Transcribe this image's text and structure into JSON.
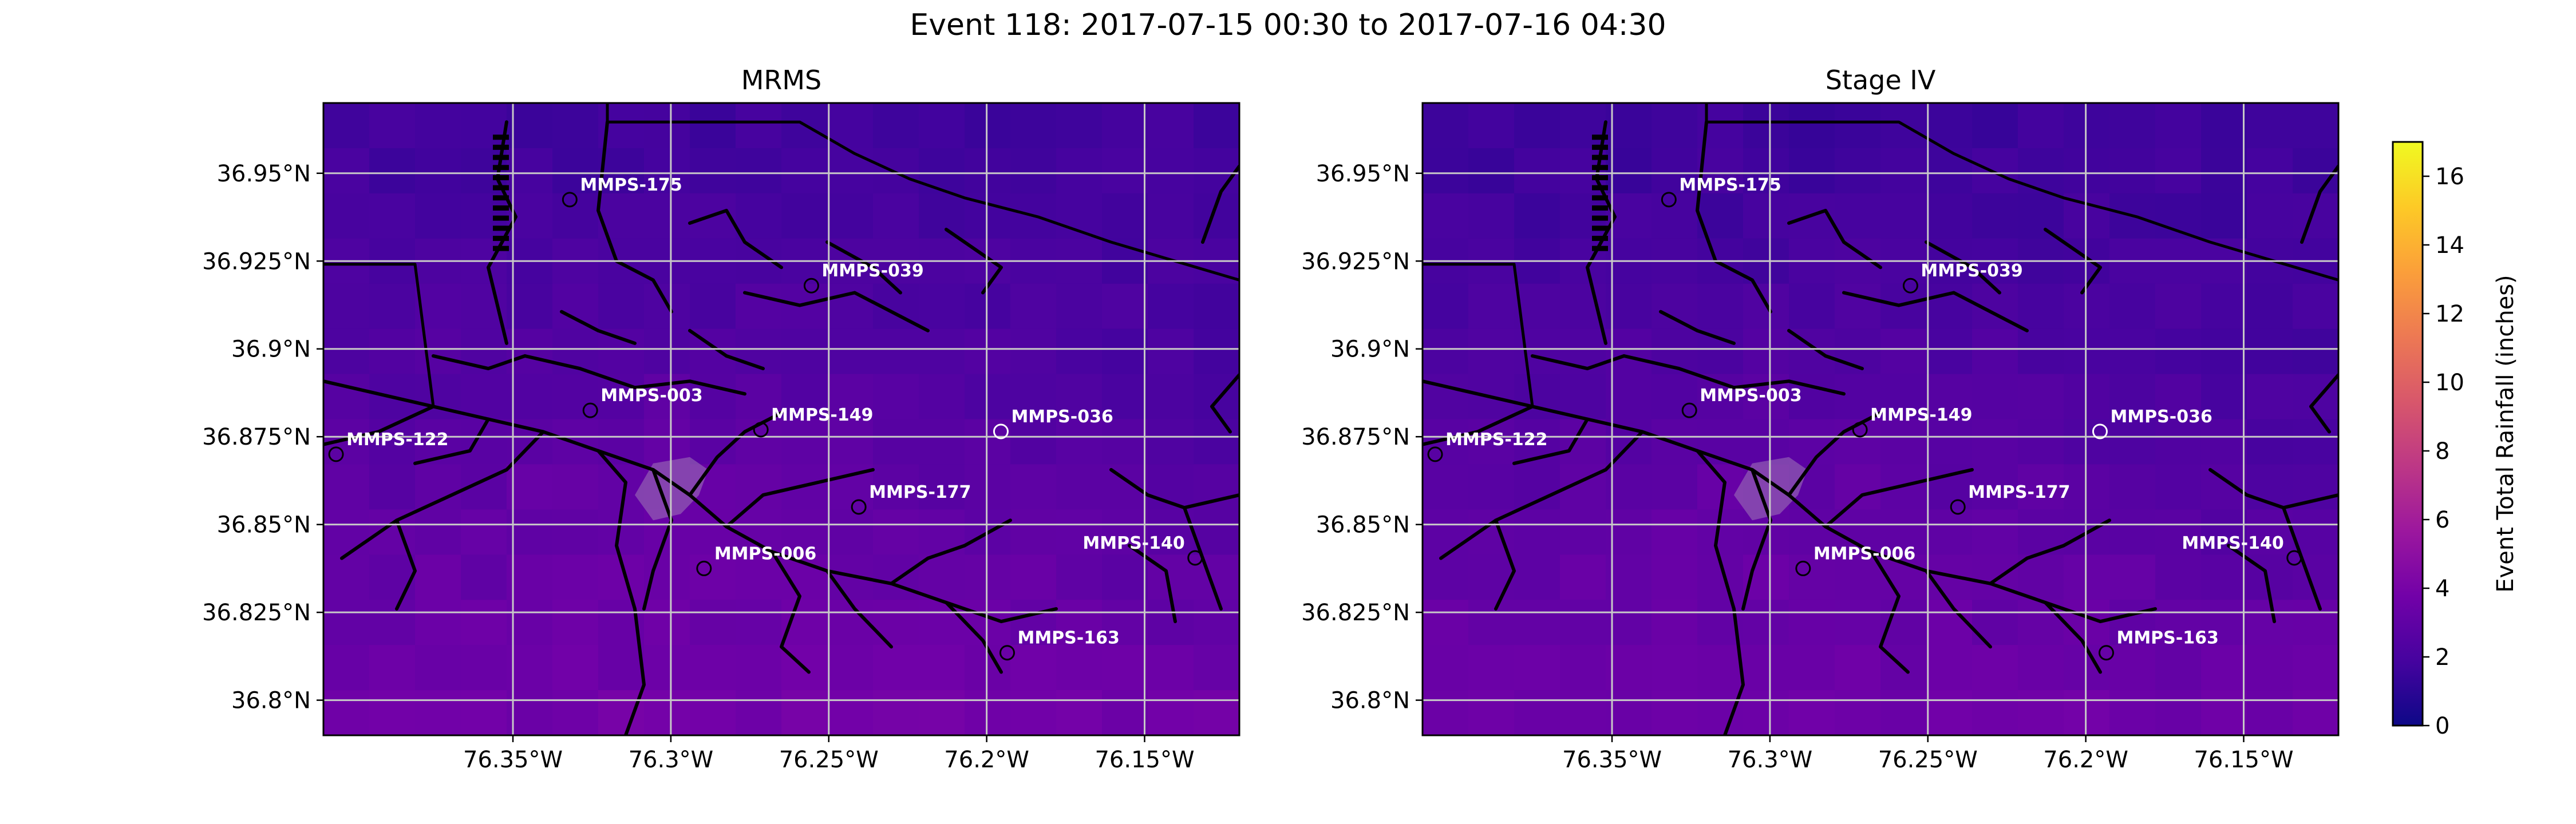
{
  "figure": {
    "title": "Event 118: 2017-07-15 00:30 to 2017-07-16 04:30"
  },
  "axes": {
    "x_ticks": [
      "76.35°W",
      "76.3°W",
      "76.25°W",
      "76.2°W",
      "76.15°W"
    ],
    "x_tick_values": [
      -76.35,
      -76.3,
      -76.25,
      -76.2,
      -76.15
    ],
    "y_ticks": [
      "36.95°N",
      "36.925°N",
      "36.9°N",
      "36.875°N",
      "36.85°N",
      "36.825°N",
      "36.8°N"
    ],
    "y_tick_values": [
      36.95,
      36.925,
      36.9,
      36.875,
      36.85,
      36.825,
      36.8
    ],
    "lon_range": [
      -76.41,
      -76.12
    ],
    "lat_range": [
      36.79,
      36.97
    ],
    "grid": true
  },
  "panels": [
    {
      "id": "mrms",
      "title": "MRMS"
    },
    {
      "id": "stage4",
      "title": "Stage IV"
    }
  ],
  "stations": [
    {
      "name": "MMPS-175",
      "lon": -76.332,
      "lat": 36.9425,
      "label_side": "right"
    },
    {
      "name": "MMPS-039",
      "lon": -76.2555,
      "lat": 36.918,
      "label_side": "right"
    },
    {
      "name": "MMPS-003",
      "lon": -76.3255,
      "lat": 36.8825,
      "label_side": "right"
    },
    {
      "name": "MMPS-149",
      "lon": -76.2715,
      "lat": 36.877,
      "label_side": "right"
    },
    {
      "name": "MMPS-036",
      "lon": -76.1955,
      "lat": 36.8765,
      "label_side": "right",
      "hollow_white": true
    },
    {
      "name": "MMPS-122",
      "lon": -76.406,
      "lat": 36.87,
      "label_side": "right"
    },
    {
      "name": "MMPS-177",
      "lon": -76.2405,
      "lat": 36.855,
      "label_side": "right"
    },
    {
      "name": "MMPS-006",
      "lon": -76.2895,
      "lat": 36.8375,
      "label_side": "right"
    },
    {
      "name": "MMPS-140",
      "lon": -76.134,
      "lat": 36.8405,
      "label_side": "left"
    },
    {
      "name": "MMPS-163",
      "lon": -76.1935,
      "lat": 36.8135,
      "label_side": "right"
    }
  ],
  "colorbar": {
    "label": "Event Total Rainfall (inches)",
    "min": 0,
    "max": 17,
    "ticks": [
      "0",
      "2",
      "4",
      "6",
      "8",
      "10",
      "12",
      "14",
      "16"
    ],
    "tick_values": [
      0,
      2,
      4,
      6,
      8,
      10,
      12,
      14,
      16
    ],
    "colormap": "plasma",
    "colors": [
      "#0d0887",
      "#46039f",
      "#7201a8",
      "#9c179e",
      "#bd3786",
      "#d8576b",
      "#ed7953",
      "#fb9f3a",
      "#fdca26",
      "#f0f921"
    ]
  },
  "chart_data": {
    "type": "heatmap",
    "title": "Event 118: 2017-07-15 00:30 to 2017-07-16 04:30",
    "units": "inches",
    "vmin": 0,
    "vmax": 17,
    "series": [
      {
        "name": "MRMS",
        "rainfall_range": [
          1.5,
          4.5
        ]
      },
      {
        "name": "Stage IV",
        "rainfall_range": [
          1.5,
          4.5
        ]
      }
    ]
  }
}
